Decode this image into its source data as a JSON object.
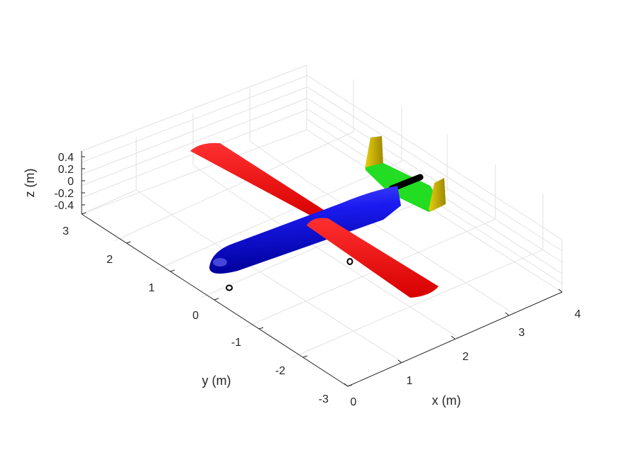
{
  "figure": {
    "axes": {
      "x": {
        "label": "x (m)",
        "ticks": [
          "0",
          "1",
          "2",
          "3",
          "4"
        ],
        "range": [
          0,
          4
        ]
      },
      "y": {
        "label": "y (m)",
        "ticks": [
          "-3",
          "-2",
          "-1",
          "0",
          "1",
          "2",
          "3"
        ],
        "range": [
          -3,
          3
        ]
      },
      "z": {
        "label": "z (m)",
        "ticks": [
          "-0.4",
          "-0.2",
          "0",
          "0.2",
          "0.4"
        ],
        "range": [
          -0.4,
          0.4
        ]
      },
      "grid": true
    },
    "colors": {
      "fuselage": "#0000e6",
      "wing": "#e60000",
      "horizontal_tail": "#22dd22",
      "vertical_tail": "#c9b000",
      "propeller_shaft": "#000000",
      "landing_gear": "#000000",
      "grid": "#e2e2e2",
      "axis": "#262626"
    }
  }
}
